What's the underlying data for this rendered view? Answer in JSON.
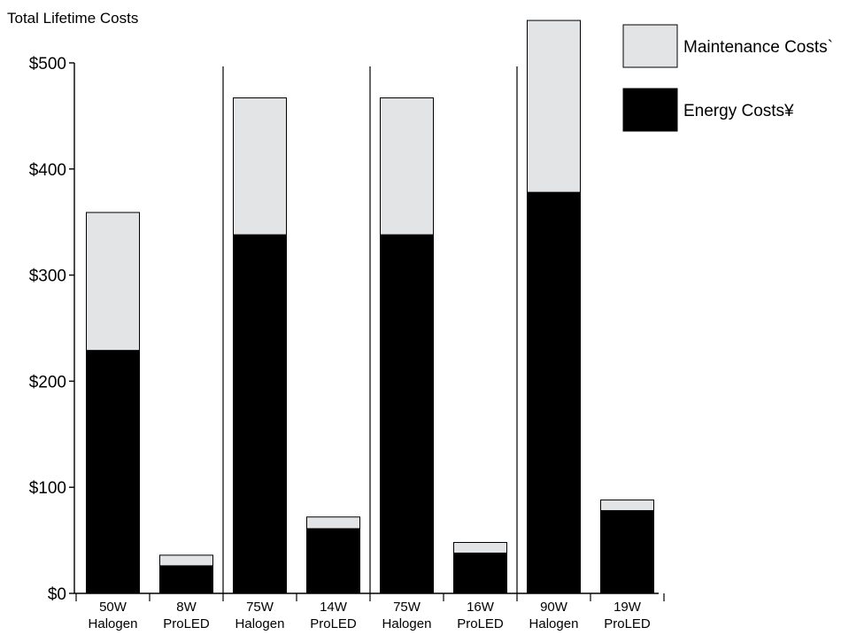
{
  "chart_data": {
    "type": "bar",
    "stacked": true,
    "title": "",
    "ylabel": "Total Lifetime Costs",
    "xlabel": "",
    "ylim": [
      0,
      500
    ],
    "yticks": [
      0,
      100,
      200,
      300,
      400,
      500
    ],
    "ytick_labels": [
      "$0",
      "$100",
      "$200",
      "$300",
      "$400",
      "$500"
    ],
    "grid": false,
    "legend_position": "top-right",
    "categories": [
      [
        "50W",
        "Halogen"
      ],
      [
        "8W",
        "ProLED"
      ],
      [
        "75W",
        "Halogen"
      ],
      [
        "14W",
        "ProLED"
      ],
      [
        "75W",
        "Halogen"
      ],
      [
        "16W",
        "ProLED"
      ],
      [
        "90W",
        "Halogen"
      ],
      [
        "19W",
        "ProLED"
      ]
    ],
    "series": [
      {
        "name": "Energy Costs¥",
        "color": "#000000",
        "values": [
          229,
          26,
          338,
          61,
          338,
          38,
          378,
          78
        ]
      },
      {
        "name": "Maintenance Costs`",
        "color": "#e3e4e6",
        "values": [
          130,
          10,
          129,
          11,
          129,
          10,
          162,
          10
        ]
      }
    ],
    "legend": [
      {
        "label": "Maintenance Costs`",
        "color": "#e3e4e6"
      },
      {
        "label": "Energy Costs¥",
        "color": "#000000"
      }
    ]
  }
}
